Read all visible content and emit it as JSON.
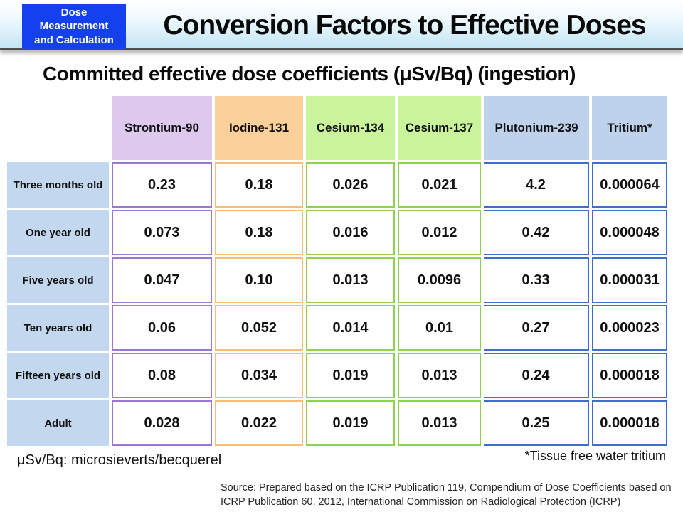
{
  "slide": {
    "badge_lines": [
      "Dose",
      "Measurement",
      "and Calculation"
    ],
    "title": "Conversion Factors to Effective Doses",
    "subtitle": "Committed effective dose coefficients (μSv/Bq) (ingestion)",
    "footnote_left": "μSv/Bq: microsieverts/becquerel",
    "footnote_right": "*Tissue free water tritium",
    "source": "Source: Prepared based on the ICRP Publication 119, Compendium of Dose Coefficients based on ICRP Publication 60, 2012, International Commission on Radiological Protection (ICRP)"
  },
  "colors": {
    "badge_bg": "#1540ee",
    "header_gradient_bottom": "#c3e5f3",
    "row_label_bg": "#c3d7ee",
    "column_header_bg": [
      "#ddc8ee",
      "#fcd09a",
      "#caf49c",
      "#caf49c",
      "#bed3eb",
      "#bed3eb"
    ],
    "column_border": [
      "#9d76d2",
      "#f9bc76",
      "#8fd24d",
      "#8fd24d",
      "#3f6ecc",
      "#3f6ecc"
    ]
  },
  "chart_data": {
    "type": "table",
    "title": "Committed effective dose coefficients (μSv/Bq) (ingestion)",
    "columns": [
      "Strontium-90",
      "Iodine-131",
      "Cesium-134",
      "Cesium-137",
      "Plutonium-239",
      "Tritium*"
    ],
    "row_labels": [
      "Three months old",
      "One year old",
      "Five years old",
      "Ten years old",
      "Fifteen years old",
      "Adult"
    ],
    "values": [
      [
        "0.23",
        "0.18",
        "0.026",
        "0.021",
        "4.2",
        "0.000064"
      ],
      [
        "0.073",
        "0.18",
        "0.016",
        "0.012",
        "0.42",
        "0.000048"
      ],
      [
        "0.047",
        "0.10",
        "0.013",
        "0.0096",
        "0.33",
        "0.000031"
      ],
      [
        "0.06",
        "0.052",
        "0.014",
        "0.01",
        "0.27",
        "0.000023"
      ],
      [
        "0.08",
        "0.034",
        "0.019",
        "0.013",
        "0.24",
        "0.000018"
      ],
      [
        "0.028",
        "0.022",
        "0.019",
        "0.013",
        "0.25",
        "0.000018"
      ]
    ]
  }
}
